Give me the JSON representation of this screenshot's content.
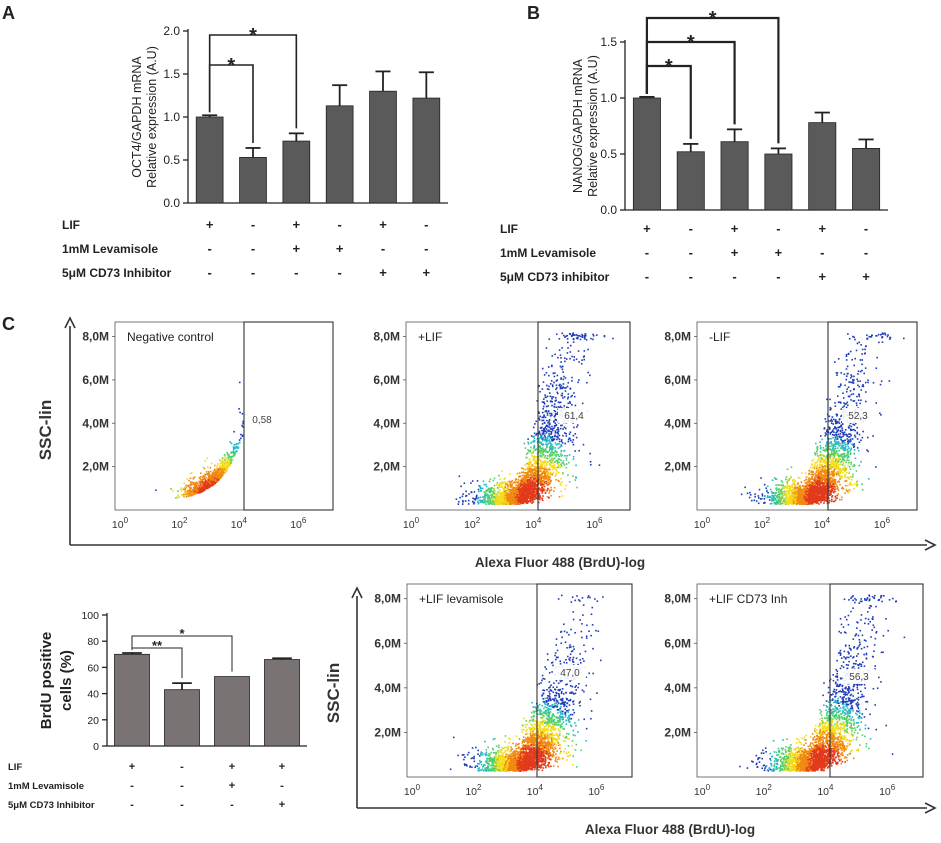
{
  "panels": {
    "a": "A",
    "b": "B",
    "c": "C"
  },
  "chart_data": [
    {
      "id": "A",
      "type": "bar",
      "ylabel_line1": "OCT4/GAPDH mRNA",
      "ylabel_line2": "Relative expression (A.U)",
      "ylim": [
        0,
        2.0
      ],
      "yticks": [
        "0.0",
        "0.5",
        "1.0",
        "1.5",
        "2.0"
      ],
      "values": [
        1.0,
        0.53,
        0.72,
        1.13,
        1.3,
        1.22
      ],
      "errors": [
        0.02,
        0.11,
        0.09,
        0.24,
        0.23,
        0.3
      ],
      "bar_color": "#5a5a5a",
      "conditions": [
        {
          "label": "LIF",
          "signs": [
            "+",
            "-",
            "+",
            "-",
            "+",
            "-"
          ]
        },
        {
          "label": "1mM Levamisole",
          "signs": [
            "-",
            "-",
            "+",
            "+",
            "-",
            "-"
          ]
        },
        {
          "label": "5μM CD73 Inhibitor",
          "signs": [
            "-",
            "-",
            "-",
            "-",
            "+",
            "+"
          ]
        }
      ],
      "significance": [
        {
          "from": 0,
          "to": 1,
          "label": "*"
        },
        {
          "from": 0,
          "to": 2,
          "label": "*"
        }
      ]
    },
    {
      "id": "B",
      "type": "bar",
      "ylabel_line1": "NANOG/GAPDH mRNA",
      "ylabel_line2": "Relative expression (A.U)",
      "ylim": [
        0,
        1.5
      ],
      "yticks": [
        "0.0",
        "0.5",
        "1.0",
        "1.5"
      ],
      "values": [
        1.0,
        0.52,
        0.61,
        0.5,
        0.78,
        0.55
      ],
      "errors": [
        0.01,
        0.07,
        0.11,
        0.05,
        0.09,
        0.08
      ],
      "bar_color": "#5a5a5a",
      "conditions": [
        {
          "label": "LIF",
          "signs": [
            "+",
            "-",
            "+",
            "-",
            "+",
            "-"
          ]
        },
        {
          "label": "1mM Levamisole",
          "signs": [
            "-",
            "-",
            "+",
            "+",
            "-",
            "-"
          ]
        },
        {
          "label": "5μM CD73 inhibitor",
          "signs": [
            "-",
            "-",
            "-",
            "-",
            "+",
            "+"
          ]
        }
      ],
      "significance": [
        {
          "from": 0,
          "to": 1,
          "label": "*"
        },
        {
          "from": 0,
          "to": 2,
          "label": "*"
        },
        {
          "from": 0,
          "to": 3,
          "label": "*"
        }
      ]
    },
    {
      "id": "C-bar",
      "type": "bar",
      "ylabel_line1": "BrdU positive",
      "ylabel_line2": "cells (%)",
      "ylim": [
        0,
        100
      ],
      "yticks": [
        "0",
        "20",
        "40",
        "60",
        "80",
        "100"
      ],
      "values": [
        70,
        43,
        53,
        66
      ],
      "errors": [
        1,
        5,
        0,
        1
      ],
      "bar_color": "#7a7373",
      "conditions": [
        {
          "label": "LIF",
          "signs": [
            "+",
            "-",
            "+",
            "+"
          ]
        },
        {
          "label": "1mM Levamisole",
          "signs": [
            "-",
            "-",
            "+",
            "-"
          ]
        },
        {
          "label": "5μM CD73 Inhibitor",
          "signs": [
            "-",
            "-",
            "-",
            "+"
          ]
        }
      ],
      "significance": [
        {
          "from": 0,
          "to": 1,
          "label": "**"
        },
        {
          "from": 0,
          "to": 2,
          "label": "*"
        }
      ]
    },
    {
      "id": "C-flow",
      "type": "scatter",
      "ylabel": "SSC-lin",
      "xlabel": "Alexa Fluor 488 (BrdU)-log",
      "yticks": [
        "2,0M",
        "4,0M",
        "6,0M",
        "8,0M"
      ],
      "xticks": [
        {
          "base": "10",
          "exp": "0"
        },
        {
          "base": "10",
          "exp": "2"
        },
        {
          "base": "10",
          "exp": "4"
        },
        {
          "base": "10",
          "exp": "6"
        }
      ],
      "plots": [
        {
          "title": "Negative control",
          "gate_value": "0,58",
          "spread": 0.25
        },
        {
          "title": "+LIF",
          "gate_value": "61,4",
          "spread": 1.0
        },
        {
          "title": "-LIF",
          "gate_value": "52,3",
          "spread": 0.85
        },
        {
          "title": "+LIF levamisole",
          "gate_value": "47,0",
          "spread": 0.75
        },
        {
          "title": "+LIF CD73 Inh",
          "gate_value": "56,3",
          "spread": 0.9
        }
      ]
    }
  ]
}
